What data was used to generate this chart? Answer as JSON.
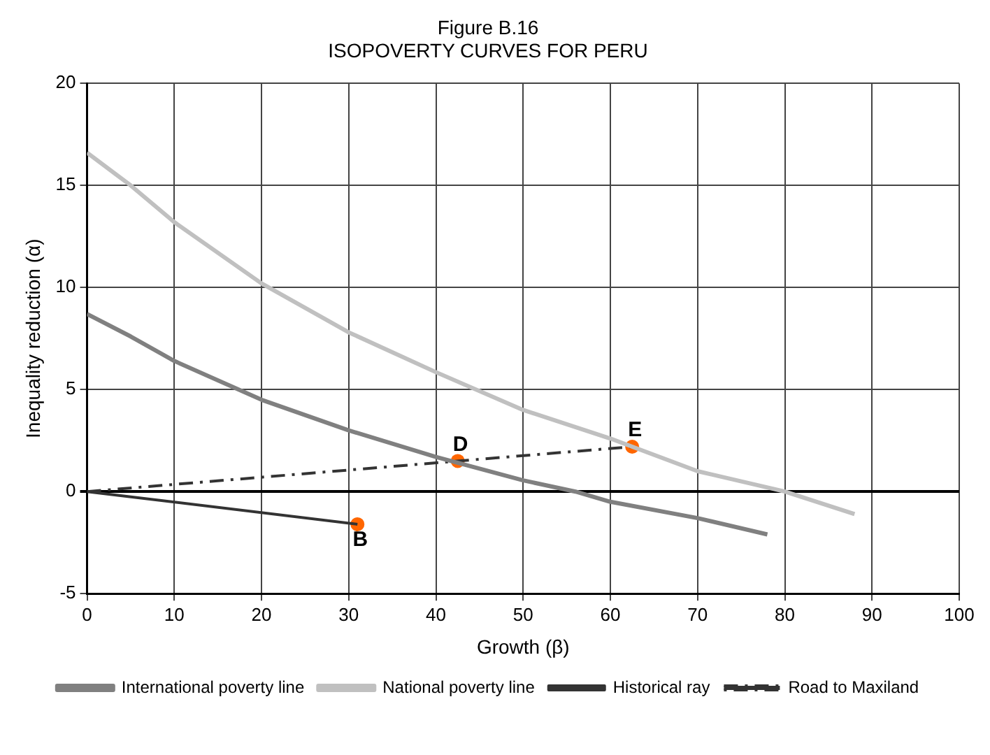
{
  "chart_data": {
    "type": "line",
    "title": "Figure B.16",
    "subtitle": "ISOPOVERTY CURVES FOR PERU",
    "xlabel": "Growth (β)",
    "ylabel": "Inequality reduction (α)",
    "xlim": [
      0,
      100
    ],
    "xticks": [
      0,
      10,
      20,
      30,
      40,
      50,
      60,
      70,
      80,
      90,
      100
    ],
    "ylim": [
      -5,
      20
    ],
    "yticks": [
      -5,
      0,
      5,
      10,
      15,
      20
    ],
    "grid": true,
    "legend": "bottom",
    "marker": "none",
    "series": [
      {
        "name": "International poverty line",
        "color": "#808080",
        "x": [
          0,
          5,
          10,
          20,
          30,
          40,
          50,
          56,
          60,
          70,
          78
        ],
        "values": [
          8.7,
          7.6,
          6.4,
          4.5,
          3.0,
          1.7,
          0.55,
          0,
          -0.5,
          -1.3,
          -2.1
        ]
      },
      {
        "name": "National poverty line",
        "color": "#c0c0c0",
        "x": [
          0,
          5,
          10,
          20,
          30,
          40,
          50,
          60,
          70,
          80,
          88
        ],
        "values": [
          16.6,
          15.0,
          13.2,
          10.2,
          7.8,
          5.85,
          4.0,
          2.6,
          1.0,
          0,
          -1.1
        ]
      },
      {
        "name": "Historical ray",
        "color": "#333333",
        "x": [
          0,
          31
        ],
        "values": [
          0,
          -1.6
        ]
      },
      {
        "name": "Road to Maxiland",
        "color": "#333333",
        "line_style": "dashed",
        "x": [
          0,
          62.5
        ],
        "values": [
          0,
          2.2
        ]
      },
      {
        "type": "scatter",
        "color": "#ff6600",
        "marker": "circle",
        "x": [
          31,
          42.5,
          62.5
        ],
        "values": [
          -1.6,
          1.5,
          2.2
        ]
      }
    ],
    "annotations": [
      {
        "text": "B",
        "x": 31,
        "y": -1.6
      },
      {
        "text": "D",
        "x": 42.5,
        "y": 1.5
      },
      {
        "text": "E",
        "x": 62.5,
        "y": 2.2
      }
    ]
  }
}
